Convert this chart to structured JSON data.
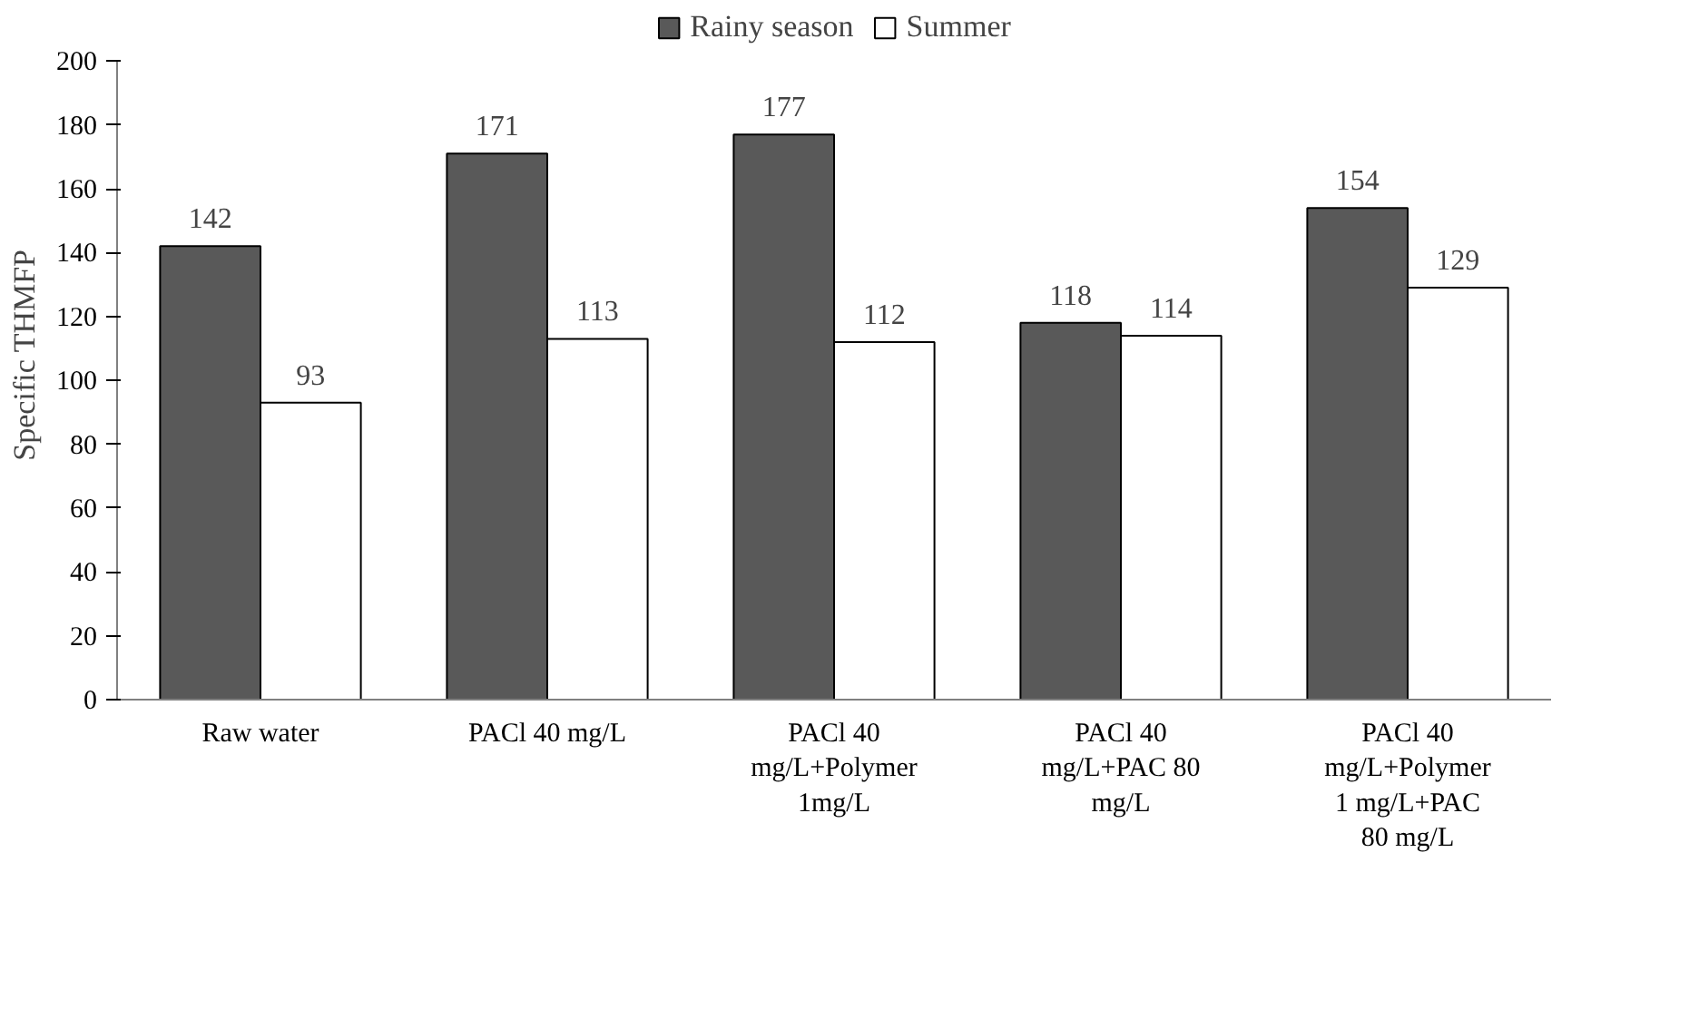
{
  "chart_data": {
    "type": "bar",
    "ylabel": "Specific THMFP",
    "categories": [
      "Raw water",
      "PACl 40 mg/L",
      "PACl 40 mg/L+Polymer 1mg/L",
      "PACl 40 mg/L+PAC 80 mg/L",
      "PACl 40 mg/L+Polymer 1 mg/L+PAC 80 mg/L"
    ],
    "series": [
      {
        "name": "Rainy season",
        "color": "#595959",
        "values": [
          142,
          171,
          177,
          118,
          154
        ]
      },
      {
        "name": "Summer",
        "color": "#ffffff",
        "values": [
          93,
          113,
          112,
          114,
          129
        ]
      }
    ],
    "ylim": [
      0,
      200
    ],
    "yticks": [
      0,
      20,
      40,
      60,
      80,
      100,
      120,
      140,
      160,
      180,
      200
    ],
    "data_labels": true,
    "grid": false,
    "legend": "top"
  }
}
